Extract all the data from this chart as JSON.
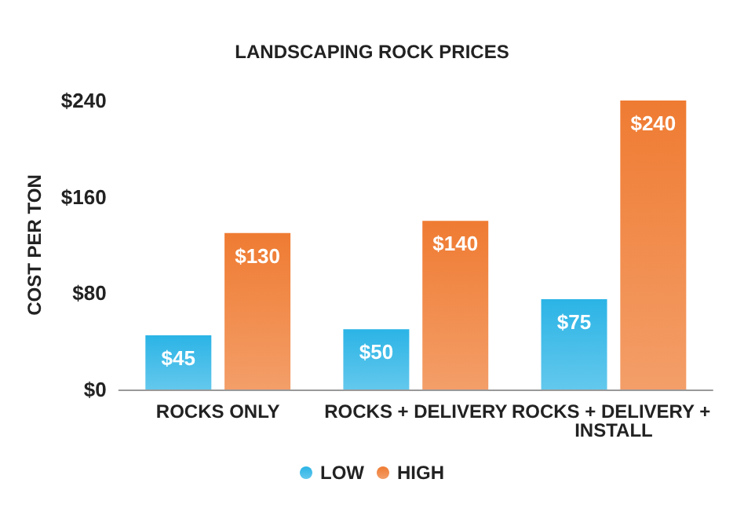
{
  "chart_data": {
    "type": "bar",
    "title": "LANDSCAPING ROCK PRICES",
    "ylabel": "COST PER TON",
    "categories": [
      "ROCKS ONLY",
      "ROCKS + DELIVERY",
      "ROCKS + DELIVERY + INSTALL"
    ],
    "series": [
      {
        "name": "LOW",
        "color": "#2bb4e6",
        "values": [
          45,
          50,
          75
        ],
        "value_labels": [
          "$45",
          "$50",
          "$75"
        ]
      },
      {
        "name": "HIGH",
        "color": "#ef7b32",
        "values": [
          130,
          140,
          240
        ],
        "value_labels": [
          "$130",
          "$140",
          "$240"
        ]
      }
    ],
    "ylim": [
      0,
      240
    ],
    "yticks": [
      {
        "value": 0,
        "label": "$0"
      },
      {
        "value": 80,
        "label": "$80"
      },
      {
        "value": 160,
        "label": "$160"
      },
      {
        "value": 240,
        "label": "$240"
      }
    ],
    "grid": false,
    "legend": "bottom"
  }
}
